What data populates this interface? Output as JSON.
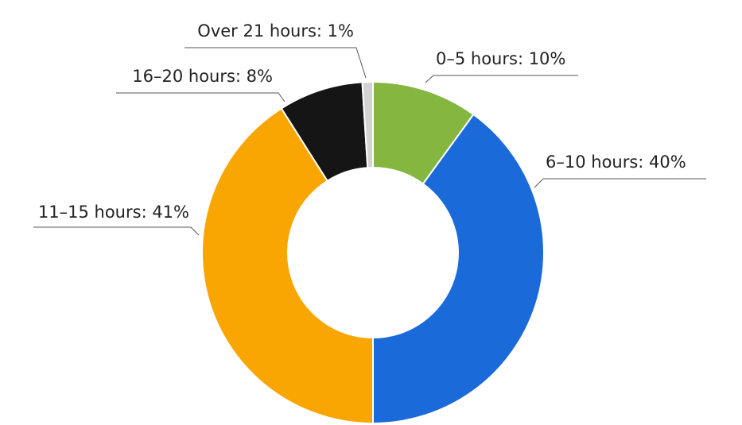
{
  "chart_data": {
    "type": "donut",
    "values": [
      10,
      40,
      41,
      8,
      1
    ],
    "value_labels": [
      "0–5 hours: 10%",
      "6–10 hours: 40%",
      "11–15 hours: 41%",
      "16–20 hours: 8%",
      "Over 21 hours: 1%"
    ],
    "colors": [
      "#84b640",
      "#1a6ad9",
      "#f9a602",
      "#151515",
      "#d3d3d3"
    ]
  }
}
